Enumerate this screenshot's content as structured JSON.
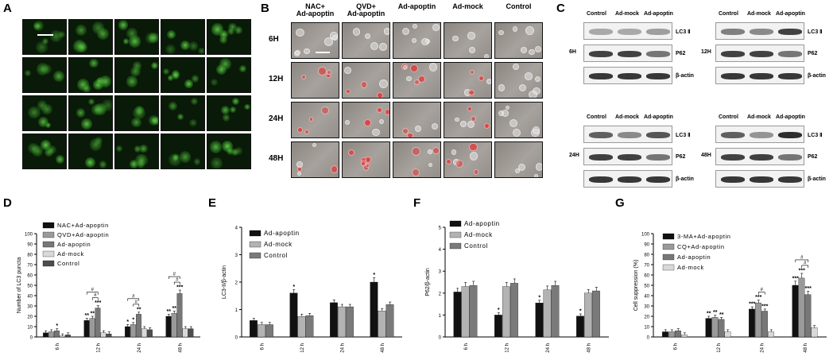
{
  "panel_labels": [
    "A",
    "B",
    "C",
    "D",
    "E",
    "F",
    "G"
  ],
  "panelA": {
    "columns": [
      "NAC+\nAd-apoptin",
      "QVD+\nAd-apoptin",
      "Ad-apoptin",
      "Ad-mock",
      "Control"
    ],
    "rows": [
      "6H",
      "12H",
      "24H",
      "48H"
    ]
  },
  "panelB": {
    "columns": [
      "NAC+\nAd-apoptin",
      "QVD+\nAd-apoptin",
      "Ad-apoptin",
      "Ad-mock",
      "Control"
    ],
    "rows": [
      "6H",
      "12H",
      "24H",
      "48H"
    ]
  },
  "panelC": {
    "lanes": [
      "Control",
      "Ad-mock",
      "Ad-apoptin"
    ],
    "proteins": [
      "LC3 Ⅱ",
      "P62",
      "β-actin"
    ],
    "timepoints": [
      "6H",
      "12H",
      "24H",
      "48H"
    ]
  },
  "chart_data": [
    {
      "panel": "D",
      "type": "bar",
      "ylabel": "Number of LC3 puncta",
      "ylim": [
        0,
        100
      ],
      "yticks": [
        0,
        10,
        20,
        30,
        40,
        50,
        60,
        70,
        80,
        90,
        100
      ],
      "categories": [
        "6 h",
        "12 h",
        "24 h",
        "48 h"
      ],
      "legend_placement": "top-left",
      "series": [
        {
          "name": "NAC+Ad-apoptin",
          "values": [
            4,
            16,
            10,
            20
          ],
          "color": "#111111"
        },
        {
          "name": "QVD+Ad-apoptin",
          "values": [
            5,
            18,
            12,
            23
          ],
          "color": "#9a9a9a"
        },
        {
          "name": "Ad-apoptin",
          "values": [
            6,
            28,
            22,
            42
          ],
          "color": "#777777"
        },
        {
          "name": "Ad-mock",
          "values": [
            1,
            4,
            8,
            8
          ],
          "color": "#d9d9d9"
        },
        {
          "name": "Control",
          "values": [
            2,
            3,
            7,
            8
          ],
          "color": "#4d4d4d"
        }
      ],
      "annotations": [
        {
          "cat": 0,
          "series": 2,
          "text": "*"
        },
        {
          "cat": 1,
          "series": 0,
          "text": "**"
        },
        {
          "cat": 1,
          "series": 1,
          "text": "**"
        },
        {
          "cat": 1,
          "series": 2,
          "text": "***"
        },
        {
          "cat": 2,
          "series": 0,
          "text": "*"
        },
        {
          "cat": 2,
          "series": 1,
          "text": "*"
        },
        {
          "cat": 2,
          "series": 2,
          "text": "**"
        },
        {
          "cat": 3,
          "series": 0,
          "text": "**"
        },
        {
          "cat": 3,
          "series": 1,
          "text": "**"
        },
        {
          "cat": 3,
          "series": 2,
          "text": "***"
        }
      ],
      "brackets": [
        {
          "cat": 1,
          "from": 0,
          "to": 2,
          "level": 1,
          "text": "#"
        },
        {
          "cat": 1,
          "from": 1,
          "to": 2,
          "level": 0,
          "text": "#"
        },
        {
          "cat": 2,
          "from": 0,
          "to": 2,
          "level": 1,
          "text": "#"
        },
        {
          "cat": 2,
          "from": 1,
          "to": 2,
          "level": 0,
          "text": "#"
        },
        {
          "cat": 3,
          "from": 0,
          "to": 2,
          "level": 1,
          "text": "#"
        },
        {
          "cat": 3,
          "from": 1,
          "to": 2,
          "level": 0,
          "text": "#"
        }
      ]
    },
    {
      "panel": "E",
      "type": "bar",
      "ylabel": "LC3-II/β-actin",
      "ylim": [
        0,
        4
      ],
      "yticks": [
        0,
        1,
        2,
        3,
        4
      ],
      "categories": [
        "6 h",
        "12 h",
        "24 h",
        "48 h"
      ],
      "legend_placement": "top-left",
      "series": [
        {
          "name": "Ad-apoptin",
          "values": [
            0.6,
            1.6,
            1.25,
            2.0
          ],
          "color": "#111111"
        },
        {
          "name": "Ad-mock",
          "values": [
            0.45,
            0.75,
            1.1,
            0.95
          ],
          "color": "#b3b3b3"
        },
        {
          "name": "Control",
          "values": [
            0.45,
            0.78,
            1.1,
            1.18
          ],
          "color": "#7a7a7a"
        }
      ],
      "annotations": [
        {
          "cat": 1,
          "series": 0,
          "text": "*"
        },
        {
          "cat": 3,
          "series": 0,
          "text": "*"
        }
      ]
    },
    {
      "panel": "F",
      "type": "bar",
      "ylabel": "P62/β-actin",
      "ylim": [
        0,
        5
      ],
      "yticks": [
        0,
        1,
        2,
        3,
        4,
        5
      ],
      "categories": [
        "6 h",
        "12 h",
        "24 h",
        "48 h"
      ],
      "legend_placement": "top-left",
      "series": [
        {
          "name": "Ad-apoptin",
          "values": [
            2.05,
            1.0,
            1.55,
            0.95
          ],
          "color": "#111111"
        },
        {
          "name": "Ad-mock",
          "values": [
            2.3,
            2.3,
            2.15,
            2.0
          ],
          "color": "#b3b3b3"
        },
        {
          "name": "Control",
          "values": [
            2.35,
            2.45,
            2.35,
            2.1
          ],
          "color": "#7a7a7a"
        }
      ],
      "annotations": [
        {
          "cat": 1,
          "series": 0,
          "text": "*"
        },
        {
          "cat": 2,
          "series": 0,
          "text": "*"
        },
        {
          "cat": 3,
          "series": 0,
          "text": "*"
        }
      ]
    },
    {
      "panel": "G",
      "type": "bar",
      "ylabel": "Cell suppression (%)",
      "ylim": [
        0,
        100
      ],
      "yticks": [
        0,
        10,
        20,
        30,
        40,
        50,
        60,
        70,
        80,
        90,
        100
      ],
      "categories": [
        "6 h",
        "12 h",
        "24 h",
        "48 h"
      ],
      "legend_placement": "top-left",
      "series": [
        {
          "name": "3-MA+Ad-apoptin",
          "values": [
            5,
            18,
            27,
            50
          ],
          "color": "#111111"
        },
        {
          "name": "CQ+Ad-apoptin",
          "values": [
            5,
            19,
            33,
            57
          ],
          "color": "#9a9a9a"
        },
        {
          "name": "Ad-apoptin",
          "values": [
            6,
            17,
            25,
            41
          ],
          "color": "#777777"
        },
        {
          "name": "Ad-mock",
          "values": [
            2,
            5,
            5,
            9
          ],
          "color": "#d9d9d9"
        }
      ],
      "annotations": [
        {
          "cat": 1,
          "series": 0,
          "text": "**"
        },
        {
          "cat": 1,
          "series": 1,
          "text": "**"
        },
        {
          "cat": 1,
          "series": 2,
          "text": "**"
        },
        {
          "cat": 2,
          "series": 0,
          "text": "***"
        },
        {
          "cat": 2,
          "series": 1,
          "text": "***"
        },
        {
          "cat": 2,
          "series": 2,
          "text": "***"
        },
        {
          "cat": 3,
          "series": 0,
          "text": "***"
        },
        {
          "cat": 3,
          "series": 1,
          "text": "***"
        },
        {
          "cat": 3,
          "series": 2,
          "text": "***"
        }
      ],
      "brackets": [
        {
          "cat": 2,
          "from": 1,
          "to": 2,
          "level": 0,
          "text": "#"
        },
        {
          "cat": 3,
          "from": 1,
          "to": 2,
          "level": 0,
          "text": "#"
        },
        {
          "cat": 3,
          "from": 0,
          "to": 2,
          "level": 1,
          "text": "#"
        }
      ]
    }
  ]
}
